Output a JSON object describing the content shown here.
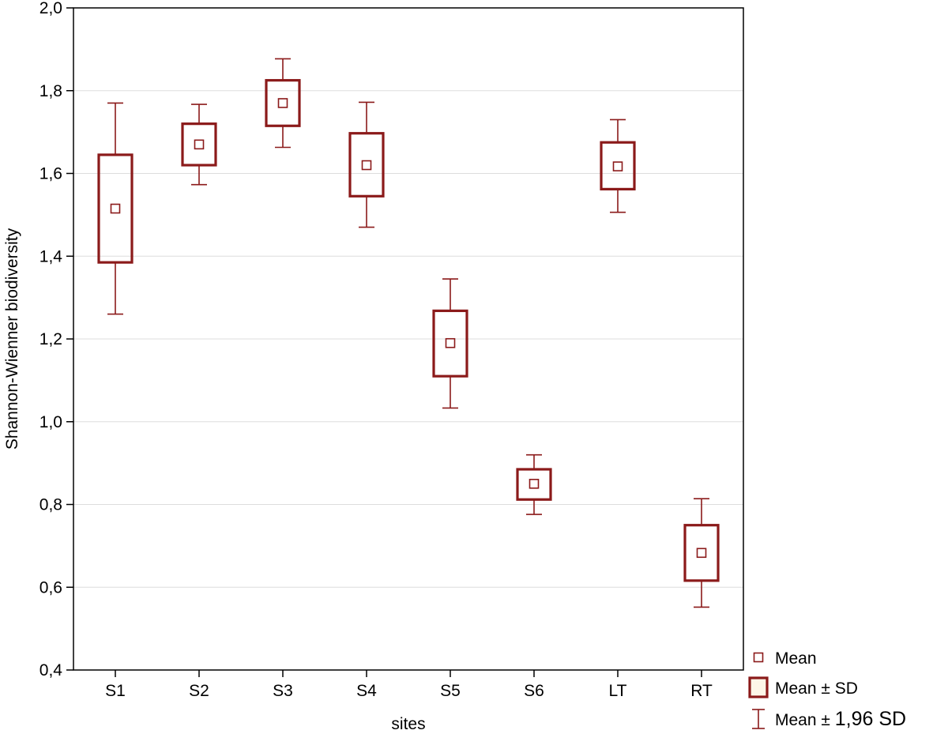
{
  "chart_data": {
    "type": "box",
    "title": "",
    "xlabel": "sites",
    "ylabel": "Shannon-Wienner biodiversity",
    "ylim": [
      0.4,
      2.0
    ],
    "yticks": [
      "0,4",
      "0,6",
      "0,8",
      "1,0",
      "1,2",
      "1,4",
      "1,6",
      "1,8",
      "2,0"
    ],
    "ytick_values": [
      0.4,
      0.6,
      0.8,
      1.0,
      1.2,
      1.4,
      1.6,
      1.8,
      2.0
    ],
    "grid": true,
    "legend_position": "bottom-right",
    "colors": {
      "series": "#8b1a1a",
      "grid": "#dddddd",
      "axis": "#000000"
    },
    "categories": [
      "S1",
      "S2",
      "S3",
      "S4",
      "S5",
      "S6",
      "LT",
      "RT"
    ],
    "mean": [
      1.515,
      1.67,
      1.77,
      1.62,
      1.19,
      0.85,
      1.617,
      0.683
    ],
    "sd_lower": [
      1.385,
      1.62,
      1.715,
      1.545,
      1.11,
      0.812,
      1.562,
      0.616
    ],
    "sd_upper": [
      1.645,
      1.72,
      1.825,
      1.697,
      1.268,
      0.885,
      1.675,
      0.75
    ],
    "ci_lower": [
      1.26,
      1.573,
      1.663,
      1.47,
      1.033,
      0.776,
      1.506,
      0.552
    ],
    "ci_upper": [
      1.77,
      1.767,
      1.877,
      1.772,
      1.345,
      0.92,
      1.73,
      0.814
    ],
    "legend": [
      {
        "symbol": "mean-marker",
        "prefix": "Mean",
        "suffix": ""
      },
      {
        "symbol": "sd-box",
        "prefix": "Mean",
        "suffix": "SD"
      },
      {
        "symbol": "whisker",
        "prefix": "Mean",
        "suffix": "1,96 SD"
      }
    ],
    "legend_pm": "±"
  }
}
